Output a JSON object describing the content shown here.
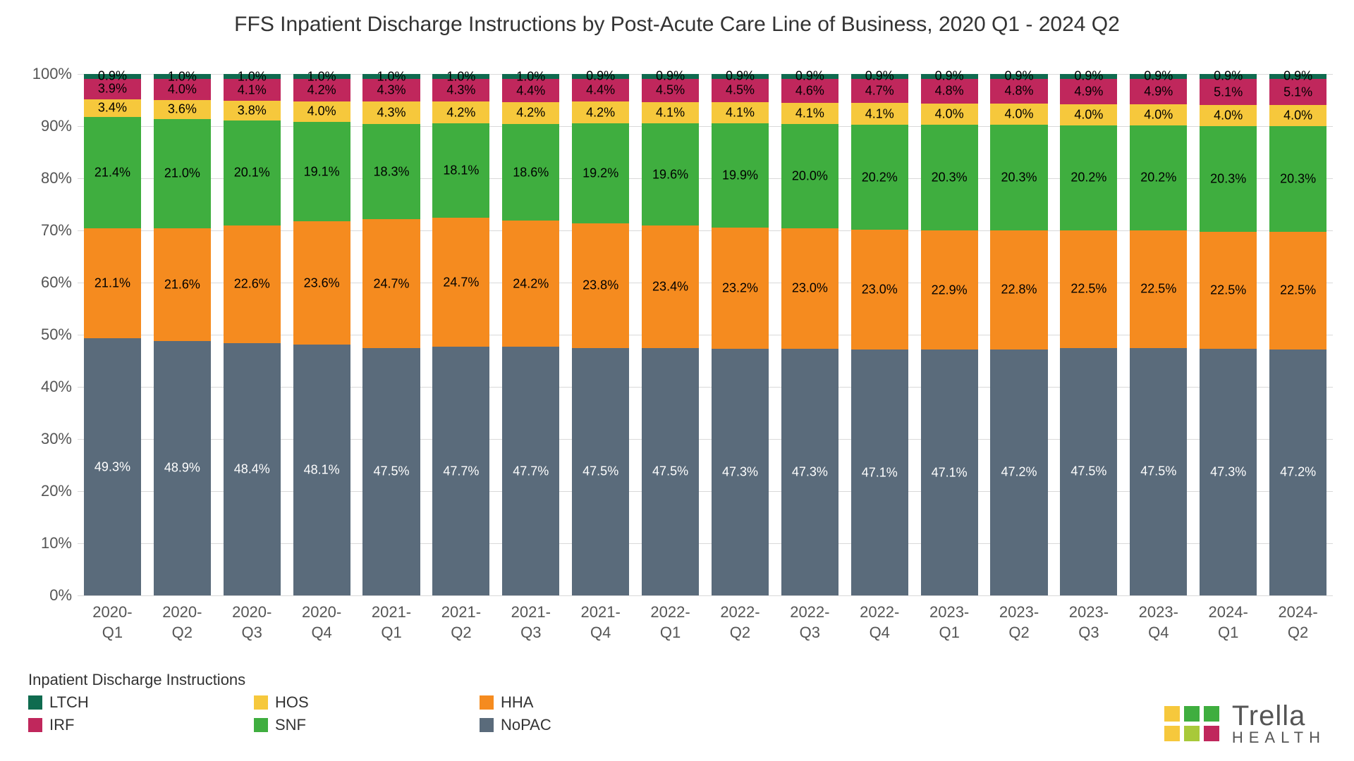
{
  "chart": {
    "type": "stacked-bar-100pct",
    "title": "FFS Inpatient Discharge Instructions by Post-Acute Care Line of Business, 2020 Q1 - 2024 Q2",
    "title_fontsize": 30,
    "title_color": "#333333",
    "background_color": "#ffffff",
    "grid_color": "#d9d9d9",
    "axis_label_color": "#555555",
    "axis_fontsize": 22,
    "xlabel_fontsize": 22,
    "data_label_fontsize": 18,
    "bar_width_ratio": 0.82,
    "ylim": [
      0,
      100
    ],
    "ytick_step": 10,
    "ytick_suffix": "%",
    "categories": [
      "2020-\nQ1",
      "2020-\nQ2",
      "2020-\nQ3",
      "2020-\nQ4",
      "2021-\nQ1",
      "2021-\nQ2",
      "2021-\nQ3",
      "2021-\nQ4",
      "2022-\nQ1",
      "2022-\nQ2",
      "2022-\nQ3",
      "2022-\nQ4",
      "2023-\nQ1",
      "2023-\nQ2",
      "2023-\nQ3",
      "2023-\nQ4",
      "2024-\nQ1",
      "2024-\nQ2"
    ],
    "legend_title": "Inpatient Discharge Instructions",
    "legend_title_fontsize": 22,
    "legend_fontsize": 22,
    "series_order_bottom_to_top": [
      "NoPAC",
      "HHA",
      "SNF",
      "HOS",
      "IRF",
      "LTCH"
    ],
    "series": {
      "NoPAC": {
        "label": "NoPAC",
        "color": "#5a6b7b",
        "label_text_color": "#ffffff",
        "values": [
          49.3,
          48.9,
          48.4,
          48.1,
          47.5,
          47.7,
          47.7,
          47.5,
          47.5,
          47.3,
          47.3,
          47.1,
          47.1,
          47.2,
          47.5,
          47.5,
          47.3,
          47.2
        ]
      },
      "HHA": {
        "label": "HHA",
        "color": "#f58b1f",
        "label_text_color": "#000000",
        "values": [
          21.1,
          21.6,
          22.6,
          23.6,
          24.7,
          24.7,
          24.2,
          23.8,
          23.4,
          23.2,
          23.0,
          23.0,
          22.9,
          22.8,
          22.5,
          22.5,
          22.5,
          22.5
        ]
      },
      "SNF": {
        "label": "SNF",
        "color": "#3fae3f",
        "label_text_color": "#000000",
        "values": [
          21.4,
          21.0,
          20.1,
          19.1,
          18.3,
          18.1,
          18.6,
          19.2,
          19.6,
          19.9,
          20.0,
          20.2,
          20.3,
          20.3,
          20.2,
          20.2,
          20.3,
          20.3
        ]
      },
      "HOS": {
        "label": "HOS",
        "color": "#f6c83c",
        "label_text_color": "#000000",
        "values": [
          3.4,
          3.6,
          3.8,
          4.0,
          4.3,
          4.2,
          4.2,
          4.2,
          4.1,
          4.1,
          4.1,
          4.1,
          4.0,
          4.0,
          4.0,
          4.0,
          4.0,
          4.0
        ]
      },
      "IRF": {
        "label": "IRF",
        "color": "#c0275c",
        "label_text_color": "#000000",
        "values": [
          3.9,
          4.0,
          4.1,
          4.2,
          4.3,
          4.3,
          4.4,
          4.4,
          4.5,
          4.5,
          4.6,
          4.7,
          4.8,
          4.8,
          4.9,
          4.9,
          5.1,
          5.1
        ]
      },
      "LTCH": {
        "label": "LTCH",
        "color": "#0f6b4f",
        "label_text_color": "#000000",
        "values": [
          0.9,
          1.0,
          1.0,
          1.0,
          1.0,
          1.0,
          1.0,
          0.9,
          0.9,
          0.9,
          0.9,
          0.9,
          0.9,
          0.9,
          0.9,
          0.9,
          0.9,
          0.9
        ]
      }
    },
    "legend_order": [
      "LTCH",
      "IRF",
      "HOS",
      "SNF",
      "HHA",
      "NoPAC"
    ]
  },
  "brand": {
    "name": "Trella",
    "subtitle": "HEALTH",
    "colors": [
      "#f6c83c",
      "#3fae3f",
      "#3fae3f",
      "#f6c83c",
      "#a8c93a",
      "#c0275c"
    ]
  }
}
